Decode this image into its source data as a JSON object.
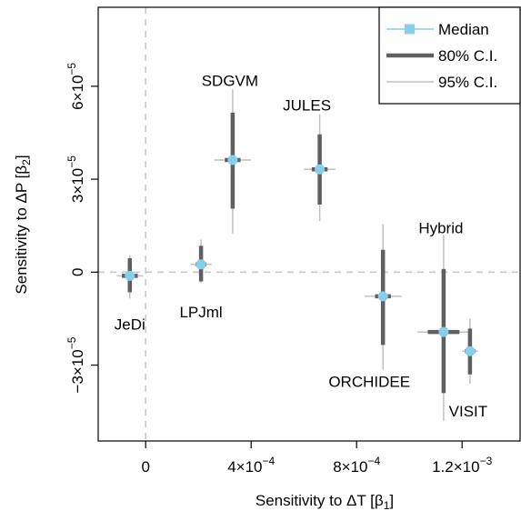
{
  "chart_data": {
    "type": "scatter",
    "title": "",
    "xlabel": "Sensitivity to ΔT [β",
    "xlabel_sub": "1",
    "xlabel_close": "]",
    "ylabel": "Sensitivity to ΔP [β",
    "ylabel_sub": "2",
    "ylabel_close": "]",
    "xlim": [
      -0.00018,
      0.00142
    ],
    "ylim": [
      -5.45e-05,
      8.55e-05
    ],
    "grid": false,
    "reference_lines": {
      "x": 0,
      "y": 0,
      "color": "#c8c8c8"
    },
    "x_ticks": [
      {
        "value": 0,
        "label": "0"
      },
      {
        "value": 0.0004,
        "mantissa": "4",
        "exp": "−4"
      },
      {
        "value": 0.0008,
        "mantissa": "8",
        "exp": "−4"
      },
      {
        "value": 0.0012,
        "mantissa": "1.2",
        "exp": "−3"
      }
    ],
    "y_ticks": [
      {
        "value": -3e-05,
        "mantissa": "−3",
        "exp": "−5"
      },
      {
        "value": 0,
        "label": "0"
      },
      {
        "value": 3e-05,
        "mantissa": "3",
        "exp": "−5"
      },
      {
        "value": 6e-05,
        "mantissa": "6",
        "exp": "−5"
      }
    ],
    "colors": {
      "median": "#87ceeb",
      "ci80": "#5f5f5f",
      "ci95": "#c0c0c0"
    },
    "legend": {
      "position": "top-right",
      "entries": [
        {
          "label": "Median",
          "kind": "median"
        },
        {
          "label": "80% C.I.",
          "kind": "ci80"
        },
        {
          "label": "95% C.I.",
          "kind": "ci95"
        }
      ]
    },
    "models": [
      {
        "name": "JeDi",
        "x": -6e-05,
        "y": -1.2e-06,
        "x80": [
          -9e-05,
          -3e-05
        ],
        "x95": [
          -0.00011,
          -1e-05
        ],
        "y80": [
          -6.5e-06,
          4.5e-06
        ],
        "y95": [
          -8.5e-06,
          5.5e-06
        ],
        "label_pos": "below"
      },
      {
        "name": "LPJml",
        "x": 0.00021,
        "y": 2.5e-06,
        "x80": [
          0.00019,
          0.00023
        ],
        "x95": [
          0.00017,
          0.00025
        ],
        "y80": [
          -3e-06,
          8.5e-06
        ],
        "y95": [
          -3.5e-06,
          1.05e-05
        ],
        "label_pos": "below"
      },
      {
        "name": "SDGVM",
        "x": 0.00033,
        "y": 3.62e-05,
        "x80": [
          0.0003,
          0.00036
        ],
        "x95": [
          0.00026,
          0.0004
        ],
        "y80": [
          2.05e-05,
          5.15e-05
        ],
        "y95": [
          1.25e-05,
          5.9e-05
        ],
        "label_pos": "above"
      },
      {
        "name": "JULES",
        "x": 0.00066,
        "y": 3.32e-05,
        "x80": [
          0.00063,
          0.00069
        ],
        "x95": [
          0.0006,
          0.00072
        ],
        "y80": [
          2.18e-05,
          4.45e-05
        ],
        "y95": [
          1.65e-05,
          5.1e-05
        ],
        "label_pos": "above"
      },
      {
        "name": "ORCHIDEE",
        "x": 0.0009,
        "y": -7.8e-06,
        "x80": [
          0.00087,
          0.00093
        ],
        "x95": [
          0.00083,
          0.00097
        ],
        "y80": [
          -2.35e-05,
          7.2e-06
        ],
        "y95": [
          -3.15e-05,
          1.55e-05
        ],
        "label_pos": "below"
      },
      {
        "name": "Hybrid",
        "x": 0.00113,
        "y": -1.93e-05,
        "x80": [
          0.00107,
          0.00119
        ],
        "x95": [
          0.00103,
          0.00123
        ],
        "y80": [
          -3.9e-05,
          1e-06
        ],
        "y95": [
          -4.8e-05,
          1.2e-05
        ],
        "label_pos": "above"
      },
      {
        "name": "VISIT",
        "x": 0.00123,
        "y": -2.55e-05,
        "x80": [
          0.00121,
          0.00125
        ],
        "x95": [
          0.0012,
          0.00126
        ],
        "y80": [
          -3.3e-05,
          -1.82e-05
        ],
        "y95": [
          -3.6e-05,
          -1.5e-05
        ],
        "label_pos": "below"
      }
    ]
  }
}
